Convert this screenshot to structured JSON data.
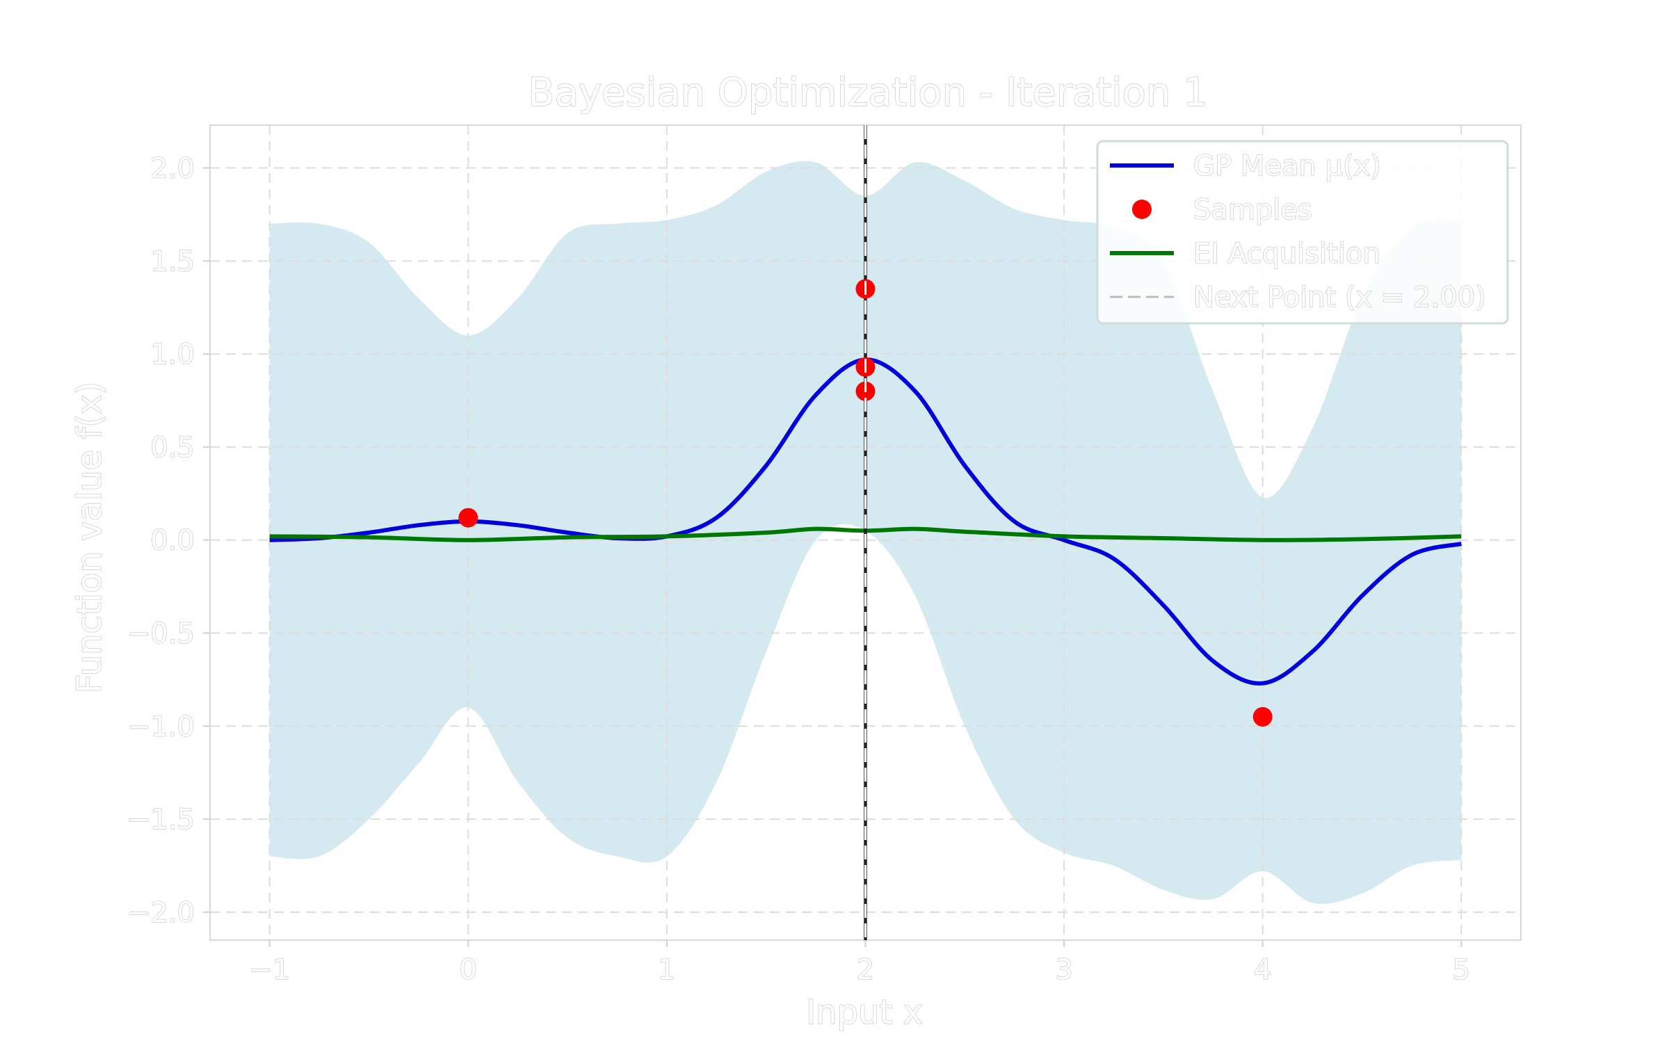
{
  "chart_data": {
    "type": "line",
    "title": "Bayesian Optimization - Iteration 1",
    "xlabel": "Input x",
    "ylabel": "Function value f(x)",
    "xlim": [
      -1.3,
      5.3
    ],
    "ylim": [
      -2.15,
      2.23
    ],
    "grid": true,
    "legend_position": "top-right",
    "x_ticks": [
      -1,
      0,
      1,
      2,
      3,
      4,
      5
    ],
    "x_tick_labels": [
      "−1",
      "0",
      "1",
      "2",
      "3",
      "4",
      "5"
    ],
    "y_ticks": [
      2.0,
      1.5,
      1.0,
      0.5,
      0.0,
      -0.5,
      -1.0,
      -1.5,
      -2.0
    ],
    "y_tick_labels": [
      "2.0",
      "1.5",
      "1.0",
      "0.5",
      "0.0",
      "−0.5",
      "−1.0",
      "−1.5",
      "−2.0"
    ],
    "series": [
      {
        "name": "GP Mean μ(x)",
        "kind": "line",
        "color": "#0000dd",
        "x": [
          -1.0,
          -0.75,
          -0.5,
          -0.25,
          0.0,
          0.25,
          0.5,
          0.75,
          1.0,
          1.25,
          1.5,
          1.75,
          2.0,
          2.25,
          2.5,
          2.75,
          3.0,
          3.25,
          3.5,
          3.75,
          4.0,
          4.25,
          4.5,
          4.75,
          5.0
        ],
        "y": [
          0.0,
          0.01,
          0.04,
          0.08,
          0.1,
          0.08,
          0.04,
          0.01,
          0.02,
          0.12,
          0.4,
          0.78,
          0.97,
          0.8,
          0.4,
          0.1,
          0.0,
          -0.1,
          -0.35,
          -0.65,
          -0.77,
          -0.6,
          -0.3,
          -0.08,
          -0.02
        ]
      },
      {
        "name": "Samples",
        "kind": "scatter",
        "color": "#ff0000",
        "x": [
          0.0,
          2.0,
          2.0,
          2.0,
          4.0
        ],
        "y": [
          0.12,
          1.35,
          0.93,
          0.8,
          -0.95
        ]
      },
      {
        "name": "EI Acquisition",
        "kind": "line",
        "color": "#007700",
        "x": [
          -1.0,
          -0.5,
          0.0,
          0.5,
          1.0,
          1.5,
          1.75,
          2.0,
          2.25,
          2.5,
          3.0,
          3.5,
          4.0,
          4.5,
          5.0
        ],
        "y": [
          0.02,
          0.015,
          0.0,
          0.015,
          0.02,
          0.04,
          0.06,
          0.05,
          0.06,
          0.045,
          0.02,
          0.01,
          0.0,
          0.005,
          0.02
        ]
      },
      {
        "name": "Next Point (x = 2.00)",
        "kind": "vline",
        "color": "#ffffff",
        "x": 2.0
      }
    ],
    "confidence_band": {
      "color": "#d4e9f0",
      "x": [
        -1.0,
        -0.75,
        -0.5,
        -0.25,
        0.0,
        0.25,
        0.5,
        0.75,
        1.0,
        1.25,
        1.5,
        1.75,
        2.0,
        2.25,
        2.5,
        2.75,
        3.0,
        3.25,
        3.5,
        3.75,
        4.0,
        4.25,
        4.5,
        4.75,
        5.0
      ],
      "upper": [
        1.7,
        1.7,
        1.6,
        1.3,
        1.1,
        1.3,
        1.65,
        1.7,
        1.72,
        1.8,
        1.98,
        2.03,
        1.85,
        2.03,
        1.93,
        1.78,
        1.72,
        1.68,
        1.5,
        0.8,
        0.23,
        0.6,
        1.3,
        1.68,
        1.72
      ],
      "lower": [
        -1.7,
        -1.7,
        -1.5,
        -1.2,
        -0.9,
        -1.3,
        -1.6,
        -1.7,
        -1.7,
        -1.3,
        -0.6,
        0.0,
        0.05,
        -0.3,
        -1.0,
        -1.5,
        -1.68,
        -1.75,
        -1.88,
        -1.93,
        -1.78,
        -1.95,
        -1.9,
        -1.75,
        -1.72
      ]
    }
  }
}
